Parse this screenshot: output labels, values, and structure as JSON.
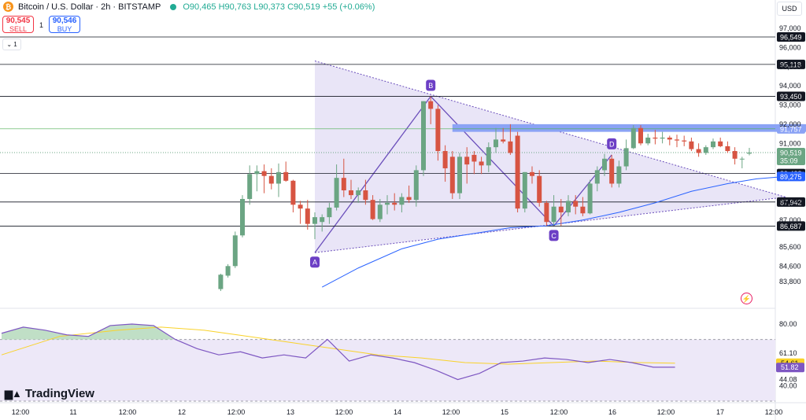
{
  "header": {
    "title": "Bitcoin / U.S. Dollar · 2h · BITSTAMP",
    "coin_glyph": "₿",
    "ohlc": "O90,465 H90,763 L90,373 C90,519 +55 (+0.06%)"
  },
  "trade": {
    "sell_price": "90,545",
    "sell_label": "SELL",
    "spread": "1",
    "buy_price": "90,546",
    "buy_label": "BUY"
  },
  "collapse_label": "⌄ 1",
  "currency": "USD",
  "branding": "TradingView",
  "colors": {
    "up": "#6ba583",
    "down": "#d75442",
    "sma": "#2962ff",
    "rsi": "#7e57c2",
    "rsi_ma": "#f9d229",
    "pattern_fill": "#e1dcf4",
    "pattern_line": "#6b4fbb",
    "resistance_zone": "#8ba3f5"
  },
  "chart_data": {
    "type": "candlestick",
    "symbol": "BTCUSD",
    "interval": "2h",
    "exchange": "BITSTAMP",
    "x_tick_labels": [
      "12:00",
      "11",
      "12:00",
      "12",
      "12:00",
      "13",
      "12:00",
      "14",
      "12:00",
      "15",
      "12:00",
      "16",
      "12:00",
      "17",
      "12:00"
    ],
    "price_ticks": [
      "97,000",
      "96,000",
      "95,000",
      "94,000",
      "93,000",
      "92,000",
      "91,000",
      "88,000",
      "87,000",
      "85,600",
      "84,600",
      "83,800"
    ],
    "ylim": [
      83300,
      97700
    ],
    "horizontal_levels": [
      96549,
      95118,
      93450,
      91757,
      89428,
      87942,
      86687
    ],
    "level_labels": [
      "96,549",
      "95,118",
      "93,450",
      "91,757",
      "89,428",
      "87,942",
      "86,687"
    ],
    "last_price": {
      "value": 90519,
      "label": "90,519",
      "countdown": "35:09"
    },
    "sma_last": {
      "value": 89275,
      "label": "89,275"
    },
    "sma": [
      [
        31,
        83500
      ],
      [
        36,
        84500
      ],
      [
        42,
        85500
      ],
      [
        47,
        86000
      ],
      [
        52,
        86300
      ],
      [
        57,
        86600
      ],
      [
        62,
        86700
      ],
      [
        67,
        87000
      ],
      [
        72,
        87400
      ],
      [
        77,
        87900
      ],
      [
        82,
        88500
      ],
      [
        87,
        88900
      ],
      [
        91,
        89150
      ],
      [
        95,
        89275
      ]
    ],
    "harmonic_points": [
      {
        "label": "A",
        "x": 30,
        "y": 85300
      },
      {
        "label": "B",
        "x": 46,
        "y": 93450
      },
      {
        "label": "C",
        "x": 63,
        "y": 86687
      },
      {
        "label": "D",
        "x": 71,
        "y": 90400
      }
    ],
    "triangle": {
      "apex_left_top": [
        30,
        95300
      ],
      "apex_left_bottom": [
        30,
        85300
      ],
      "apex_right": [
        95,
        88200
      ]
    },
    "resistance_zone": {
      "x": [
        49,
        98
      ],
      "y": [
        91600,
        92000
      ]
    },
    "candles": [
      [
        17,
        83400,
        84200,
        83300,
        84150
      ],
      [
        18,
        84100,
        84700,
        84000,
        84600
      ],
      [
        19,
        84600,
        86400,
        84500,
        86200
      ],
      [
        20,
        86200,
        88300,
        86100,
        88100
      ],
      [
        21,
        88100,
        89850,
        87800,
        89400
      ],
      [
        22,
        89400,
        89850,
        88500,
        89550
      ],
      [
        23,
        89550,
        89900,
        88400,
        89300
      ],
      [
        24,
        89300,
        89700,
        88600,
        88900
      ],
      [
        25,
        88900,
        89950,
        88200,
        89500
      ],
      [
        26,
        89500,
        90050,
        89000,
        89050
      ],
      [
        27,
        89050,
        89100,
        87400,
        87800
      ],
      [
        28,
        87800,
        88000,
        86800,
        87600
      ],
      [
        29,
        87600,
        88050,
        86500,
        86800
      ],
      [
        30,
        86800,
        87400,
        86000,
        87150
      ],
      [
        31,
        86900,
        87300,
        86400,
        87150
      ],
      [
        32,
        87150,
        87900,
        86800,
        87650
      ],
      [
        33,
        87650,
        89900,
        87500,
        89200
      ],
      [
        34,
        89200,
        90200,
        88200,
        88550
      ],
      [
        35,
        88550,
        89100,
        88100,
        88300
      ],
      [
        36,
        88300,
        88700,
        87900,
        88550
      ],
      [
        37,
        88550,
        89100,
        87800,
        88050
      ],
      [
        38,
        88050,
        88300,
        87000,
        87050
      ],
      [
        39,
        87050,
        88100,
        86900,
        87800
      ],
      [
        40,
        87800,
        88300,
        87300,
        87900
      ],
      [
        41,
        87900,
        88400,
        87500,
        87800
      ],
      [
        42,
        87800,
        88400,
        87400,
        88200
      ],
      [
        43,
        88200,
        88800,
        87900,
        88050
      ],
      [
        44,
        88050,
        89850,
        87700,
        89600
      ],
      [
        45,
        89600,
        93200,
        89300,
        93200
      ],
      [
        46,
        93200,
        93450,
        92000,
        92800
      ],
      [
        47,
        92800,
        93000,
        90100,
        90600
      ],
      [
        48,
        90600,
        90900,
        89000,
        89700
      ],
      [
        49,
        90300,
        90600,
        88100,
        88400
      ],
      [
        50,
        88400,
        90500,
        88100,
        90300
      ],
      [
        51,
        90300,
        90800,
        88900,
        89900
      ],
      [
        52,
        90400,
        90600,
        89400,
        90050
      ],
      [
        53,
        90050,
        90300,
        89400,
        89850
      ],
      [
        54,
        89850,
        91050,
        89500,
        90800
      ],
      [
        55,
        90800,
        91800,
        90500,
        91200
      ],
      [
        56,
        91200,
        91800,
        91000,
        91100
      ],
      [
        57,
        91100,
        92000,
        90400,
        90500
      ],
      [
        58,
        91400,
        91600,
        87400,
        87600
      ],
      [
        59,
        87600,
        89500,
        87400,
        89500
      ],
      [
        60,
        89500,
        89800,
        88900,
        89300
      ],
      [
        61,
        89300,
        89600,
        87700,
        87900
      ],
      [
        62,
        87900,
        88000,
        86700,
        86900
      ],
      [
        63,
        86900,
        88300,
        86700,
        87700
      ],
      [
        64,
        87700,
        88100,
        86700,
        87400
      ],
      [
        65,
        87400,
        88300,
        87200,
        88000
      ],
      [
        66,
        88000,
        88300,
        87300,
        87700
      ],
      [
        67,
        87700,
        88200,
        87200,
        87350
      ],
      [
        68,
        87350,
        89100,
        87300,
        88900
      ],
      [
        69,
        88900,
        89800,
        88500,
        89600
      ],
      [
        70,
        89600,
        90450,
        89300,
        90200
      ],
      [
        71,
        90200,
        90400,
        88700,
        88900
      ],
      [
        72,
        88900,
        90100,
        88700,
        89800
      ],
      [
        73,
        89800,
        91200,
        89600,
        90750
      ],
      [
        74,
        90750,
        91950,
        90700,
        91800
      ],
      [
        75,
        91800,
        91950,
        90900,
        91000
      ],
      [
        76,
        91000,
        91500,
        90900,
        91300
      ],
      [
        77,
        91300,
        91700,
        90950,
        91250
      ],
      [
        78,
        91250,
        91600,
        91000,
        91300
      ],
      [
        79,
        91300,
        91400,
        90900,
        91200
      ],
      [
        80,
        91200,
        91450,
        90800,
        91150
      ],
      [
        81,
        91150,
        91400,
        90850,
        91100
      ],
      [
        82,
        91100,
        91300,
        90600,
        90700
      ],
      [
        83,
        90700,
        91000,
        90300,
        90500
      ],
      [
        84,
        90500,
        90900,
        90400,
        90800
      ],
      [
        85,
        90800,
        91250,
        90700,
        91100
      ],
      [
        86,
        91100,
        91300,
        90800,
        90850
      ],
      [
        87,
        90850,
        91100,
        90500,
        90600
      ],
      [
        88,
        90600,
        90800,
        89900,
        90200
      ],
      [
        89,
        90200,
        90300,
        89700,
        90200
      ],
      [
        90,
        90465,
        90763,
        90373,
        90519
      ]
    ],
    "rsi": {
      "ylim": [
        35,
        85
      ],
      "ticks": [
        "80.00",
        "61.10",
        "44.08",
        "40.00"
      ],
      "bands": [
        70,
        30
      ],
      "rsi_last": {
        "value": 51.82,
        "label": "51.82"
      },
      "ma_last": {
        "value": 54.61,
        "label": "54.61"
      },
      "rsi_values": [
        [
          0,
          74
        ],
        [
          3,
          78
        ],
        [
          6,
          76
        ],
        [
          9,
          73
        ],
        [
          12,
          72
        ],
        [
          15,
          79
        ],
        [
          18,
          80
        ],
        [
          21,
          79
        ],
        [
          24,
          70
        ],
        [
          27,
          64
        ],
        [
          30,
          60
        ],
        [
          33,
          62
        ],
        [
          36,
          58
        ],
        [
          39,
          60
        ],
        [
          42,
          58
        ],
        [
          45,
          70
        ],
        [
          48,
          56
        ],
        [
          51,
          60
        ],
        [
          54,
          58
        ],
        [
          57,
          55
        ],
        [
          60,
          50
        ],
        [
          63,
          44
        ],
        [
          66,
          48
        ],
        [
          69,
          55
        ],
        [
          72,
          56
        ],
        [
          75,
          58
        ],
        [
          78,
          57
        ],
        [
          81,
          55
        ],
        [
          84,
          57
        ],
        [
          87,
          55
        ],
        [
          90,
          52
        ],
        [
          93,
          52
        ]
      ],
      "ma_values": [
        [
          0,
          60
        ],
        [
          8,
          72
        ],
        [
          16,
          76
        ],
        [
          22,
          78
        ],
        [
          28,
          76
        ],
        [
          34,
          72
        ],
        [
          40,
          68
        ],
        [
          46,
          64
        ],
        [
          52,
          60
        ],
        [
          58,
          58
        ],
        [
          64,
          55
        ],
        [
          70,
          54
        ],
        [
          76,
          55
        ],
        [
          82,
          56
        ],
        [
          88,
          55
        ],
        [
          93,
          54.6
        ]
      ]
    }
  }
}
